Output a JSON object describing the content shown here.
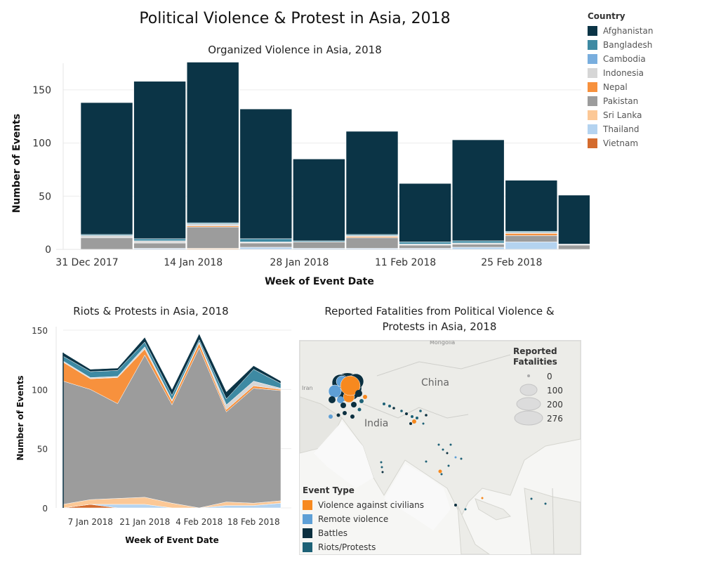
{
  "main_title": "Political Violence & Protest in Asia, 2018",
  "legend": {
    "title": "Country",
    "countries": [
      {
        "name": "Afghanistan",
        "color": "#0b3446"
      },
      {
        "name": "Bangladesh",
        "color": "#3e8aa3"
      },
      {
        "name": "Cambodia",
        "color": "#79aede"
      },
      {
        "name": "Indonesia",
        "color": "#d6d6d6"
      },
      {
        "name": "Nepal",
        "color": "#f7913d"
      },
      {
        "name": "Pakistan",
        "color": "#9c9c9c"
      },
      {
        "name": "Sri Lanka",
        "color": "#fcc896"
      },
      {
        "name": "Thailand",
        "color": "#b4d3f0"
      },
      {
        "name": "Vietnam",
        "color": "#d46b2e"
      }
    ]
  },
  "chart_data": [
    {
      "type": "bar",
      "title": "Organized Violence in Asia, 2018",
      "xlabel": "Week of Event Date",
      "ylabel": "Number of Events",
      "x_tick_labels": [
        "31 Dec 2017",
        "14 Jan 2018",
        "28 Jan 2018",
        "11 Feb 2018",
        "25 Feb 2018"
      ],
      "categories": [
        "31 Dec 2017",
        "7 Jan 2018",
        "14 Jan 2018",
        "21 Jan 2018",
        "28 Jan 2018",
        "4 Feb 2018",
        "11 Feb 2018",
        "18 Feb 2018",
        "25 Feb 2018",
        "4 Mar 2018"
      ],
      "ylim": [
        0,
        175
      ],
      "yticks": [
        0,
        50,
        100,
        150
      ],
      "grid": "horizontal",
      "series": [
        {
          "name": "Thailand",
          "values": [
            0,
            1,
            0,
            2,
            1,
            1,
            1,
            2,
            7,
            0
          ]
        },
        {
          "name": "Sri Lanka",
          "values": [
            0,
            0,
            1,
            0,
            0,
            0,
            0,
            0,
            0,
            0
          ]
        },
        {
          "name": "Pakistan",
          "values": [
            11,
            5,
            20,
            4,
            6,
            10,
            3,
            3,
            6,
            4
          ]
        },
        {
          "name": "Nepal",
          "values": [
            0,
            0,
            1,
            0,
            0,
            1,
            0,
            0,
            2,
            0
          ]
        },
        {
          "name": "Indonesia",
          "values": [
            2,
            2,
            2,
            1,
            0,
            1,
            1,
            1,
            1,
            1
          ]
        },
        {
          "name": "Bangladesh",
          "values": [
            1,
            2,
            1,
            3,
            1,
            1,
            2,
            2,
            1,
            0
          ]
        },
        {
          "name": "Afghanistan",
          "values": [
            124,
            148,
            151,
            122,
            77,
            97,
            55,
            95,
            48,
            46
          ]
        }
      ]
    },
    {
      "type": "area",
      "title": "Riots & Protests in Asia, 2018",
      "xlabel": "Week of Event Date",
      "ylabel": "Number of Events",
      "x_tick_labels": [
        "7 Jan 2018",
        "21 Jan 2018",
        "4 Feb 2018",
        "18 Feb 2018"
      ],
      "x": [
        "31 Dec 2017",
        "7 Jan 2018",
        "14 Jan 2018",
        "21 Jan 2018",
        "28 Jan 2018",
        "4 Feb 2018",
        "11 Feb 2018",
        "18 Feb 2018",
        "25 Feb 2018"
      ],
      "ylim": [
        0,
        150
      ],
      "yticks": [
        0,
        50,
        100,
        150
      ],
      "series": [
        {
          "name": "Vietnam",
          "values": [
            0,
            3,
            0,
            0,
            0,
            0,
            0,
            0,
            0
          ]
        },
        {
          "name": "Thailand",
          "values": [
            0,
            0,
            3,
            3,
            0,
            0,
            2,
            2,
            4
          ]
        },
        {
          "name": "Sri Lanka",
          "values": [
            3,
            4,
            5,
            6,
            4,
            0,
            3,
            2,
            2
          ]
        },
        {
          "name": "Pakistan",
          "values": [
            104,
            93,
            80,
            120,
            83,
            135,
            76,
            97,
            93
          ]
        },
        {
          "name": "Nepal",
          "values": [
            16,
            9,
            22,
            5,
            3,
            4,
            2,
            2,
            1
          ]
        },
        {
          "name": "Indonesia",
          "values": [
            1,
            1,
            1,
            2,
            1,
            1,
            4,
            4,
            1
          ]
        },
        {
          "name": "Bangladesh",
          "values": [
            4,
            5,
            5,
            4,
            4,
            2,
            5,
            10,
            4
          ]
        },
        {
          "name": "Afghanistan",
          "values": [
            3,
            2,
            2,
            4,
            5,
            5,
            6,
            3,
            2
          ]
        }
      ]
    }
  ],
  "map": {
    "title": "Reported Fatalities from Political Violence & Protests in Asia, 2018",
    "labels": {
      "china": "China",
      "india": "India",
      "iran": "Iran",
      "mongolia": "Mongolia"
    },
    "size_legend": {
      "title": "Reported Fatalities",
      "values": [
        "0",
        "100",
        "200",
        "276"
      ]
    },
    "event_type_legend": {
      "title": "Event Type",
      "items": [
        {
          "name": "Violence against civilians",
          "color": "#f7891f"
        },
        {
          "name": "Remote violence",
          "color": "#5e9fd6"
        },
        {
          "name": "Battles",
          "color": "#0b2f3f"
        },
        {
          "name": "Riots/Protests",
          "color": "#1d6176"
        }
      ]
    }
  }
}
